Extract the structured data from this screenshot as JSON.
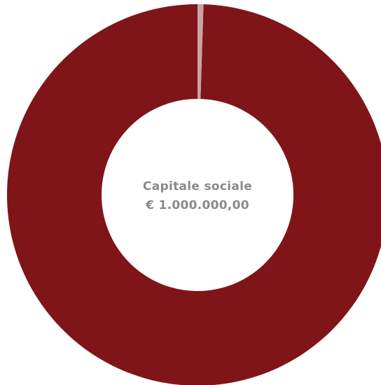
{
  "chart_data": {
    "type": "pie",
    "variant": "donut",
    "categories": [
      "",
      ""
    ],
    "values": [
      99.5,
      0.5
    ],
    "colors": [
      "#7f1519",
      "#c9a3a4"
    ],
    "center_label": {
      "line1": "Capitale sociale",
      "line2": "€ 1.000.000,00"
    },
    "legend": "none"
  }
}
